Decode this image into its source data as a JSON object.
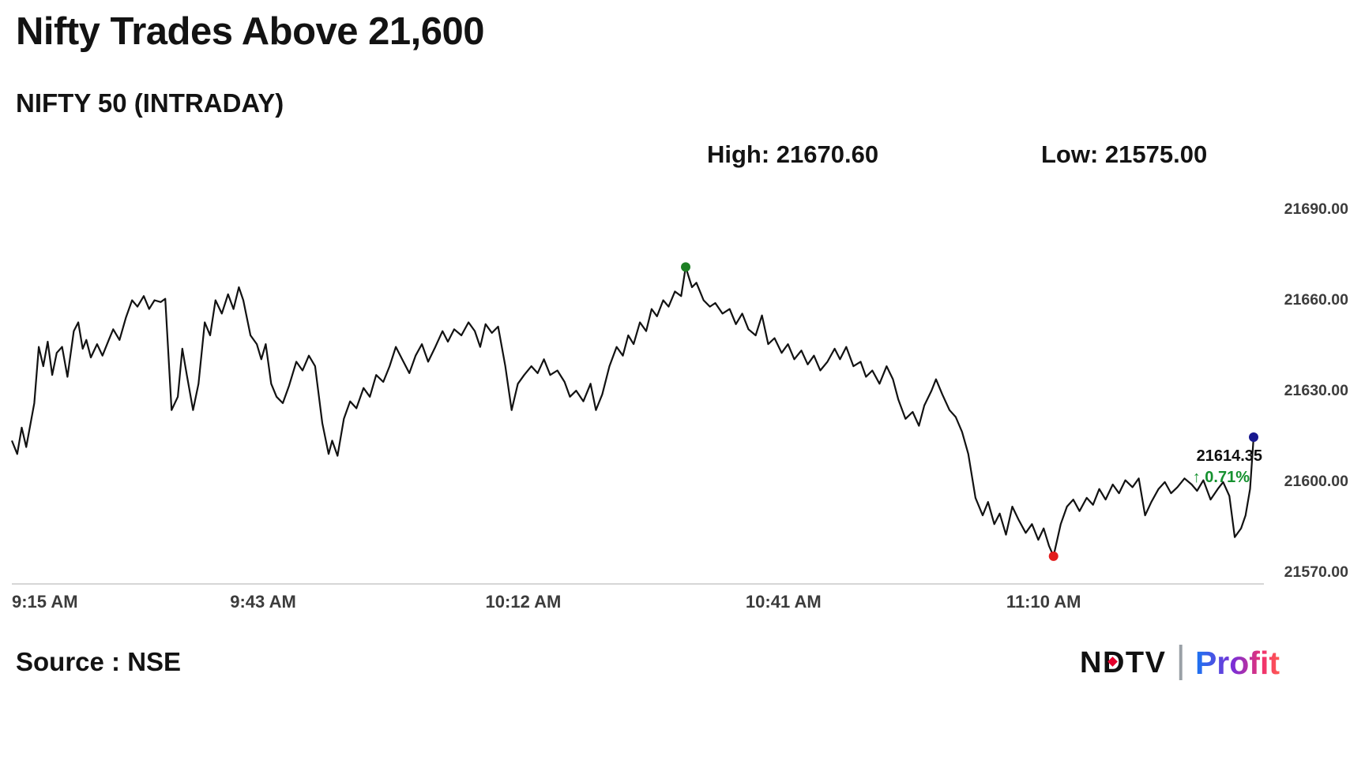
{
  "header": {
    "title": "Nifty Trades Above 21,600",
    "subtitle": "NIFTY 50 (INTRADAY)",
    "high_label": "High: 21670.60",
    "low_label": "Low: 21575.00"
  },
  "annotation": {
    "last_price_label": "21614.35",
    "change_label": "↑ 0.71%"
  },
  "footer": {
    "source": "Source : NSE",
    "logo": {
      "ndtv": "NDTV",
      "divider": "|",
      "profit": "Profit"
    }
  },
  "chart_data": {
    "type": "line",
    "title": "Nifty Trades Above 21,600",
    "subtitle": "NIFTY 50 (INTRADAY)",
    "series_name": "NIFTY 50",
    "source": "NSE",
    "high": 21670.6,
    "low": 21575.0,
    "last": 21614.35,
    "change_percent": 0.71,
    "x_unit": "minutes_after_9:15_AM",
    "xlim": [
      0,
      138.4
    ],
    "ylim": [
      21570,
      21690
    ],
    "y_ticks": [
      21690,
      21660,
      21630,
      21600,
      21570
    ],
    "x_ticks": [
      {
        "t": 0,
        "label": "9:15 AM"
      },
      {
        "t": 28,
        "label": "9:43 AM"
      },
      {
        "t": 57,
        "label": "10:12 AM"
      },
      {
        "t": 86,
        "label": "10:41 AM"
      },
      {
        "t": 115,
        "label": "11:10 AM"
      }
    ],
    "grid": false,
    "legend": false,
    "line_color": "#121212",
    "axis_line_color": "#c9c9c9",
    "marker_colors": {
      "high": "#1d7f24",
      "low": "#e21d1d",
      "last": "#18188f"
    },
    "points": [
      [
        0,
        21613.2
      ],
      [
        0.6,
        21608.8
      ],
      [
        1.1,
        21617.5
      ],
      [
        1.6,
        21611.1
      ],
      [
        2.5,
        21625.6
      ],
      [
        3,
        21644.2
      ],
      [
        3.5,
        21637.8
      ],
      [
        4,
        21645.9
      ],
      [
        4.5,
        21634.9
      ],
      [
        5,
        21642.2
      ],
      [
        5.6,
        21644.2
      ],
      [
        6.2,
        21634.3
      ],
      [
        6.9,
        21649.4
      ],
      [
        7.4,
        21652.3
      ],
      [
        7.9,
        21643.6
      ],
      [
        8.3,
        21646.5
      ],
      [
        8.8,
        21640.7
      ],
      [
        9.5,
        21645.1
      ],
      [
        10.1,
        21641.3
      ],
      [
        10.8,
        21646.5
      ],
      [
        11.3,
        21650
      ],
      [
        12,
        21646.5
      ],
      [
        12.7,
        21653.8
      ],
      [
        13.4,
        21659.6
      ],
      [
        14,
        21657.5
      ],
      [
        14.7,
        21661
      ],
      [
        15.3,
        21656.7
      ],
      [
        15.9,
        21659.6
      ],
      [
        16.6,
        21659
      ],
      [
        17.1,
        21660.1
      ],
      [
        17.8,
        21623.3
      ],
      [
        18.5,
        21627.7
      ],
      [
        19,
        21643.6
      ],
      [
        19.5,
        21634.9
      ],
      [
        20.2,
        21623.3
      ],
      [
        20.8,
        21632
      ],
      [
        21.5,
        21652.3
      ],
      [
        22.1,
        21648
      ],
      [
        22.7,
        21659.6
      ],
      [
        23.4,
        21655.2
      ],
      [
        24.1,
        21661.6
      ],
      [
        24.7,
        21656.7
      ],
      [
        25.3,
        21663.9
      ],
      [
        25.8,
        21659.6
      ],
      [
        26.6,
        21648
      ],
      [
        27.3,
        21645.1
      ],
      [
        27.8,
        21640.1
      ],
      [
        28.3,
        21645.1
      ],
      [
        28.9,
        21632
      ],
      [
        29.5,
        21627.7
      ],
      [
        30.2,
        21625.6
      ],
      [
        30.9,
        21631.4
      ],
      [
        31.7,
        21639.3
      ],
      [
        32.4,
        21636.4
      ],
      [
        33.1,
        21641.3
      ],
      [
        33.8,
        21637.8
      ],
      [
        34.6,
        21619
      ],
      [
        35.3,
        21608.8
      ],
      [
        35.7,
        21613.2
      ],
      [
        36.3,
        21608.2
      ],
      [
        37,
        21620.4
      ],
      [
        37.7,
        21626.2
      ],
      [
        38.4,
        21623.9
      ],
      [
        39.2,
        21630.6
      ],
      [
        39.9,
        21627.7
      ],
      [
        40.6,
        21634.9
      ],
      [
        41.4,
        21632.6
      ],
      [
        42.1,
        21637.8
      ],
      [
        42.8,
        21644.2
      ],
      [
        43.5,
        21640.1
      ],
      [
        44.3,
        21635.5
      ],
      [
        45,
        21641.3
      ],
      [
        45.7,
        21645.1
      ],
      [
        46.4,
        21639.3
      ],
      [
        47.2,
        21644.2
      ],
      [
        48,
        21649.4
      ],
      [
        48.6,
        21645.9
      ],
      [
        49.3,
        21650
      ],
      [
        50.1,
        21648
      ],
      [
        50.9,
        21652.3
      ],
      [
        51.6,
        21649.4
      ],
      [
        52.2,
        21644.2
      ],
      [
        52.8,
        21651.7
      ],
      [
        53.5,
        21648.8
      ],
      [
        54.2,
        21650.9
      ],
      [
        55,
        21637.8
      ],
      [
        55.7,
        21623.3
      ],
      [
        56.4,
        21632
      ],
      [
        57.1,
        21634.9
      ],
      [
        57.9,
        21637.8
      ],
      [
        58.6,
        21635.5
      ],
      [
        59.3,
        21640.1
      ],
      [
        60,
        21634.9
      ],
      [
        60.8,
        21636.4
      ],
      [
        61.6,
        21632.6
      ],
      [
        62.2,
        21627.7
      ],
      [
        62.9,
        21629.7
      ],
      [
        63.7,
        21626.2
      ],
      [
        64.5,
        21632
      ],
      [
        65.1,
        21623.3
      ],
      [
        65.8,
        21628.5
      ],
      [
        66.6,
        21637.8
      ],
      [
        67.4,
        21644.2
      ],
      [
        68.1,
        21641.3
      ],
      [
        68.7,
        21648
      ],
      [
        69.3,
        21645.1
      ],
      [
        70,
        21652.3
      ],
      [
        70.7,
        21649.4
      ],
      [
        71.3,
        21656.7
      ],
      [
        71.9,
        21654.3
      ],
      [
        72.6,
        21659.6
      ],
      [
        73.2,
        21657.5
      ],
      [
        73.9,
        21662.5
      ],
      [
        74.6,
        21661
      ],
      [
        75.1,
        21670.6
      ],
      [
        75.8,
        21663.9
      ],
      [
        76.3,
        21665.4
      ],
      [
        77.1,
        21659.6
      ],
      [
        77.8,
        21657.5
      ],
      [
        78.4,
        21658.7
      ],
      [
        79.2,
        21655.2
      ],
      [
        80,
        21656.7
      ],
      [
        80.7,
        21651.7
      ],
      [
        81.4,
        21655.2
      ],
      [
        82.1,
        21650
      ],
      [
        82.9,
        21648
      ],
      [
        83.6,
        21654.6
      ],
      [
        84.3,
        21645.1
      ],
      [
        85,
        21647.1
      ],
      [
        85.8,
        21642.2
      ],
      [
        86.5,
        21645.1
      ],
      [
        87.2,
        21640.1
      ],
      [
        88,
        21643
      ],
      [
        88.7,
        21638.4
      ],
      [
        89.4,
        21641.3
      ],
      [
        90.1,
        21636.4
      ],
      [
        90.9,
        21639.3
      ],
      [
        91.7,
        21643.6
      ],
      [
        92.3,
        21640.1
      ],
      [
        93,
        21644.2
      ],
      [
        93.8,
        21637.8
      ],
      [
        94.6,
        21639.3
      ],
      [
        95.2,
        21634.3
      ],
      [
        95.9,
        21636.4
      ],
      [
        96.7,
        21632
      ],
      [
        97.5,
        21637.8
      ],
      [
        98.2,
        21633.5
      ],
      [
        98.8,
        21626.8
      ],
      [
        99.6,
        21620.4
      ],
      [
        100.4,
        21622.7
      ],
      [
        101.1,
        21618.1
      ],
      [
        101.7,
        21624.8
      ],
      [
        102.5,
        21629.7
      ],
      [
        103,
        21633.5
      ],
      [
        103.7,
        21628.5
      ],
      [
        104.5,
        21623.3
      ],
      [
        105.2,
        21621
      ],
      [
        105.9,
        21616.1
      ],
      [
        106.6,
        21608.8
      ],
      [
        107.4,
        21594.3
      ],
      [
        108.2,
        21588.5
      ],
      [
        108.8,
        21592.9
      ],
      [
        109.5,
        21585.6
      ],
      [
        110.1,
        21589.1
      ],
      [
        110.8,
        21582.1
      ],
      [
        111.5,
        21591.4
      ],
      [
        112.2,
        21587.1
      ],
      [
        113,
        21582.7
      ],
      [
        113.7,
        21585.6
      ],
      [
        114.4,
        21580.4
      ],
      [
        115,
        21584.2
      ],
      [
        115.6,
        21578.4
      ],
      [
        116.1,
        21575
      ],
      [
        116.9,
        21585.6
      ],
      [
        117.6,
        21591.4
      ],
      [
        118.3,
        21593.7
      ],
      [
        119,
        21589.9
      ],
      [
        119.8,
        21594.3
      ],
      [
        120.5,
        21592
      ],
      [
        121.2,
        21597.2
      ],
      [
        121.9,
        21593.7
      ],
      [
        122.7,
        21598.7
      ],
      [
        123.4,
        21595.8
      ],
      [
        124.1,
        21600.1
      ],
      [
        124.9,
        21597.8
      ],
      [
        125.6,
        21600.7
      ],
      [
        126.3,
        21588.5
      ],
      [
        127,
        21592.9
      ],
      [
        127.8,
        21597.2
      ],
      [
        128.5,
        21599.5
      ],
      [
        129.2,
        21595.8
      ],
      [
        129.9,
        21597.8
      ],
      [
        130.7,
        21600.7
      ],
      [
        131.5,
        21598.7
      ],
      [
        132.1,
        21596.6
      ],
      [
        132.8,
        21600.1
      ],
      [
        133.6,
        21593.7
      ],
      [
        134.4,
        21597.2
      ],
      [
        135,
        21599.5
      ],
      [
        135.7,
        21594.9
      ],
      [
        136.3,
        21581.3
      ],
      [
        137,
        21584.2
      ],
      [
        137.5,
        21588.5
      ],
      [
        138,
        21597.2
      ],
      [
        138.4,
        21614.35
      ]
    ]
  }
}
